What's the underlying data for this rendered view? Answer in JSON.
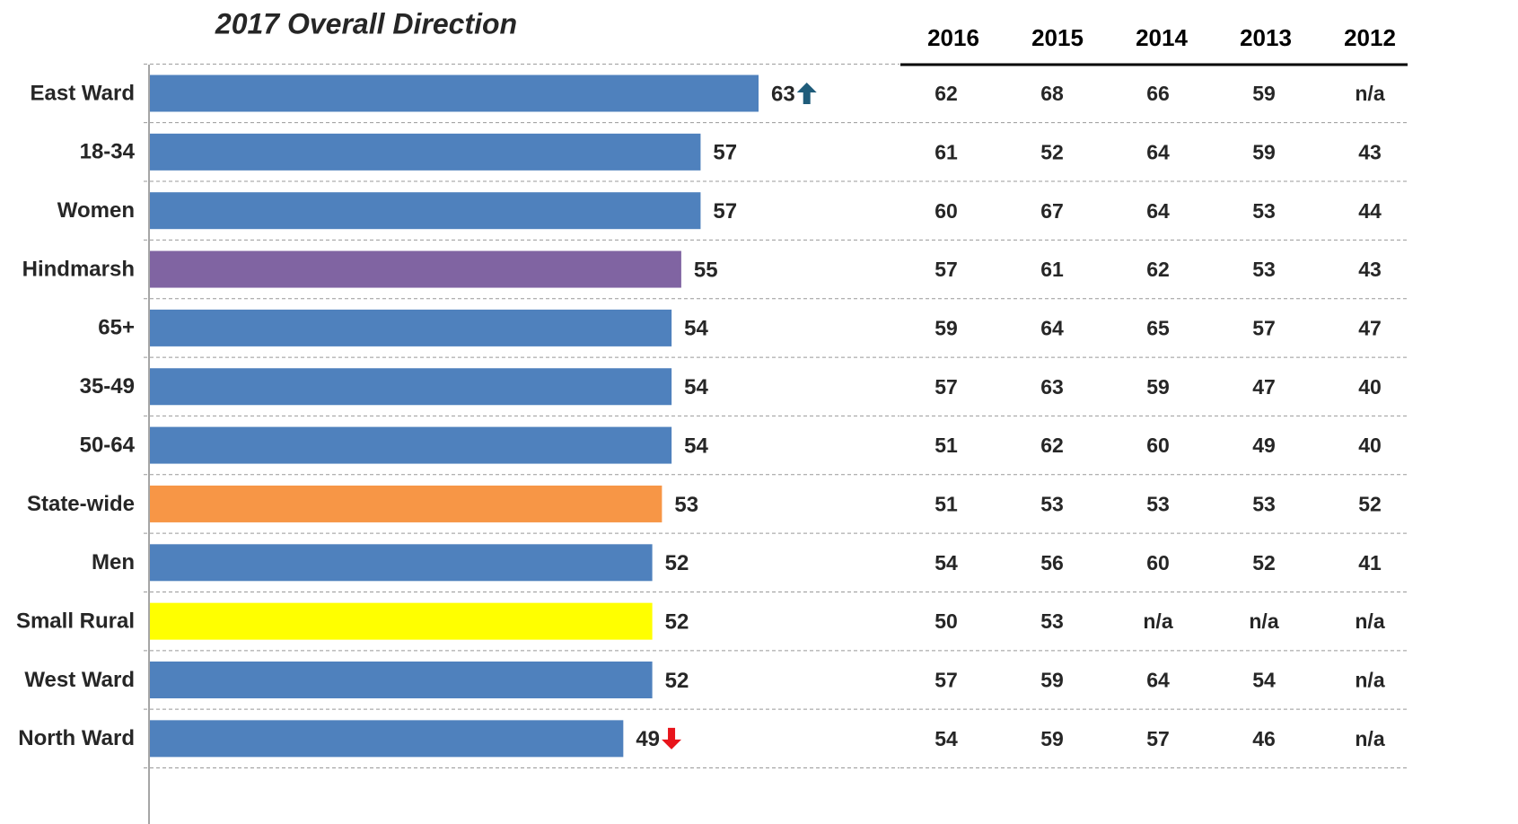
{
  "chart_data": {
    "type": "bar",
    "orientation": "horizontal",
    "title": "2017 Overall Direction",
    "categories": [
      "East Ward",
      "18-34",
      "Women",
      "Hindmarsh",
      "65+",
      "35-49",
      "50-64",
      "State-wide",
      "Men",
      "Small Rural",
      "West Ward",
      "North Ward"
    ],
    "values": [
      63,
      57,
      57,
      55,
      54,
      54,
      54,
      53,
      52,
      52,
      52,
      49
    ],
    "colors": [
      "#4f81bd",
      "#4f81bd",
      "#4f81bd",
      "#8064a2",
      "#4f81bd",
      "#4f81bd",
      "#4f81bd",
      "#f79646",
      "#4f81bd",
      "#ffff00",
      "#4f81bd",
      "#4f81bd"
    ],
    "value_label_colors": [
      "#262626",
      "#262626",
      "#262626",
      "#262626",
      "#262626",
      "#262626",
      "#262626",
      "#1f5c7a",
      "#262626",
      "#1f5c7a",
      "#262626",
      "#262626"
    ],
    "significance": [
      "up",
      null,
      null,
      null,
      null,
      null,
      null,
      null,
      null,
      null,
      null,
      "down"
    ],
    "grid": true
  },
  "table": {
    "columns": [
      "2016",
      "2015",
      "2014",
      "2013",
      "2012"
    ],
    "rows": [
      [
        62,
        68,
        66,
        59,
        "n/a"
      ],
      [
        61,
        52,
        64,
        59,
        43
      ],
      [
        60,
        67,
        64,
        53,
        44
      ],
      [
        57,
        61,
        62,
        53,
        43
      ],
      [
        59,
        64,
        65,
        57,
        47
      ],
      [
        57,
        63,
        59,
        47,
        40
      ],
      [
        51,
        62,
        60,
        49,
        40
      ],
      [
        51,
        53,
        53,
        53,
        52
      ],
      [
        54,
        56,
        60,
        52,
        41
      ],
      [
        50,
        53,
        "n/a",
        "n/a",
        "n/a"
      ],
      [
        57,
        59,
        64,
        54,
        "n/a"
      ],
      [
        54,
        59,
        57,
        46,
        "n/a"
      ]
    ]
  }
}
